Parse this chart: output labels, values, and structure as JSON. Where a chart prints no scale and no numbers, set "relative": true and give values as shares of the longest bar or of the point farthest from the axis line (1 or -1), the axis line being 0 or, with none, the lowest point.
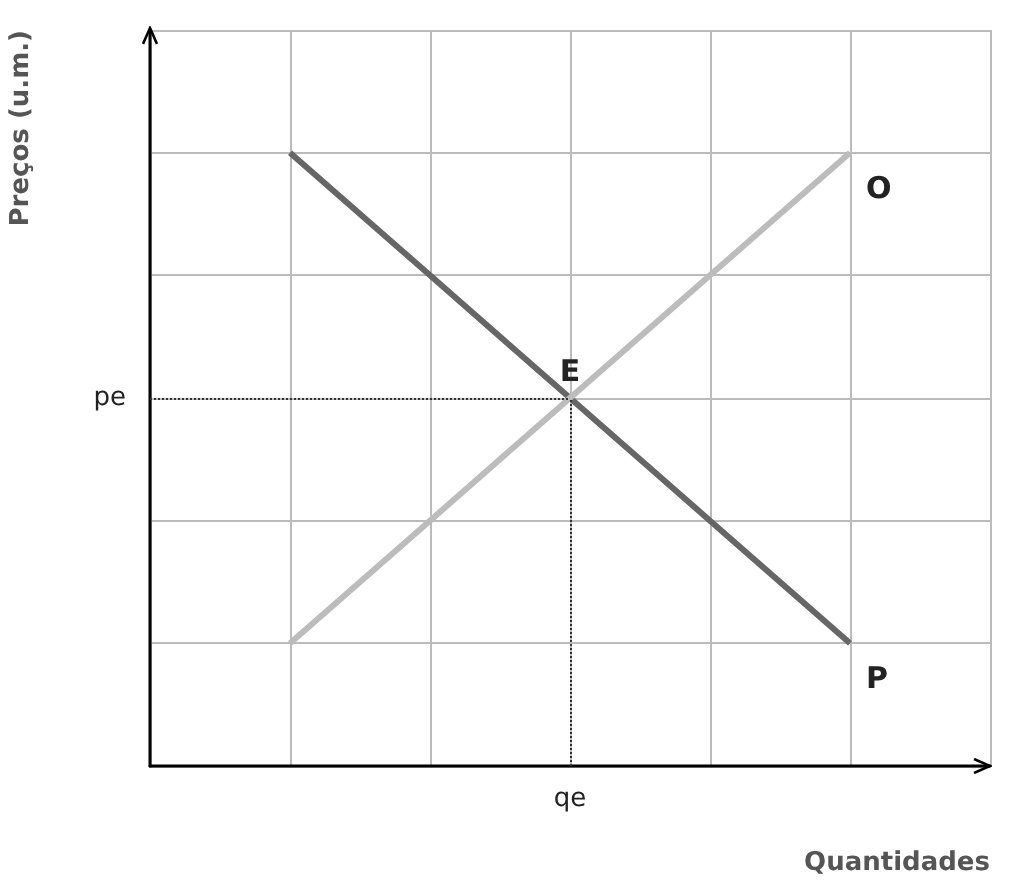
{
  "chart_data": {
    "type": "line",
    "relative": true,
    "xlabel": "Quantidades",
    "ylabel": "Preços (u.m.)",
    "categories": [
      null,
      null,
      null,
      null,
      null,
      null,
      null
    ],
    "series": [
      {
        "name": "P",
        "color": "#666666",
        "values": [
          null,
          1,
          0.8,
          0.6,
          0.4,
          0.2,
          null
        ]
      },
      {
        "name": "O",
        "color": "#bcbcbc",
        "values": [
          null,
          0.2,
          0.4,
          0.6,
          0.8,
          1,
          null
        ]
      }
    ],
    "annotations": [
      {
        "text": "E",
        "y": 0.6
      },
      "qe"
    ],
    "ref_lines": [
      {
        "axis": "y",
        "value": 0.6,
        "label": "pe",
        "line_style": "dotted",
        "color": "#333333"
      }
    ],
    "grid": true,
    "legend": false,
    "marker": "none",
    "line_style": "solid"
  }
}
